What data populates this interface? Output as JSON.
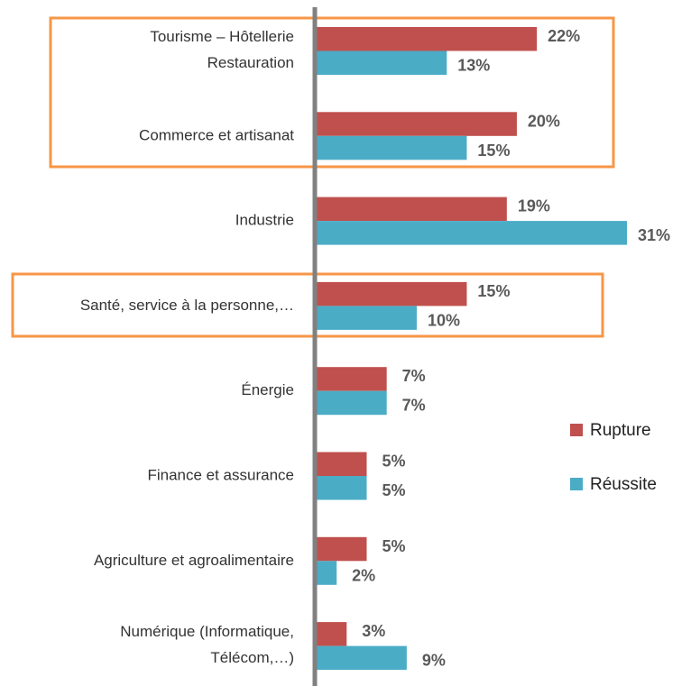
{
  "chart_data": {
    "type": "bar",
    "orientation": "horizontal",
    "categories": [
      "Tourisme – Hôtellerie\nRestauration",
      "Commerce et artisanat",
      "Industrie",
      "Santé, service à la personne,…",
      "Énergie",
      "Finance et assurance",
      "Agriculture et agroalimentaire",
      "Numérique (Informatique,\nTélécom,…)"
    ],
    "series": [
      {
        "name": "Rupture",
        "color": "#c0504d",
        "values": [
          22,
          20,
          19,
          15,
          7,
          5,
          5,
          3
        ],
        "value_labels": [
          "22%",
          "20%",
          "19%",
          "15%",
          "7%",
          "5%",
          "5%",
          "3%"
        ]
      },
      {
        "name": "Réussite",
        "color": "#4bacc6",
        "values": [
          13,
          15,
          31,
          10,
          7,
          5,
          2,
          9
        ],
        "value_labels": [
          "13%",
          "15%",
          "31%",
          "10%",
          "7%",
          "5%",
          "2%",
          "9%"
        ]
      }
    ],
    "legend": "right"
  }
}
